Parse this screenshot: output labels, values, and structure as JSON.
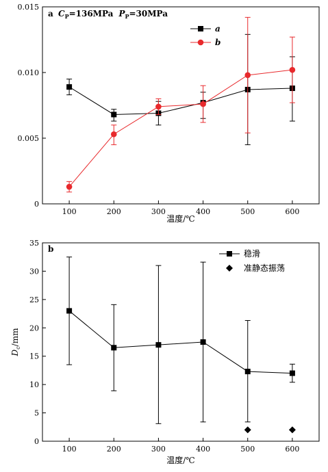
{
  "chart_data": [
    {
      "type": "line",
      "panel_label": "a",
      "condition": {
        "cp_symbol": "C",
        "cp_sub": "P",
        "cp_value": "=136MPa",
        "pp_symbol": "P",
        "pp_sub": "P",
        "pp_value": "=30MPa"
      },
      "x": [
        100,
        200,
        300,
        400,
        500,
        600
      ],
      "xlim": [
        40,
        660
      ],
      "ylim": [
        0,
        0.015
      ],
      "xticks": [
        "100",
        "200",
        "300",
        "400",
        "500",
        "600"
      ],
      "yticks": [
        {
          "value": 0,
          "label": "0"
        },
        {
          "value": 0.005,
          "label": "0.005"
        },
        {
          "value": 0.01,
          "label": "0.010"
        },
        {
          "value": 0.015,
          "label": "0.015"
        }
      ],
      "xlabel": "温度/℃",
      "ylabel": "",
      "legend_position": "top-right",
      "grid": false,
      "series": [
        {
          "name": "a",
          "color": "#000000",
          "marker": "square",
          "values": [
            0.0089,
            0.0068,
            0.0069,
            0.0077,
            0.0087,
            0.0088
          ],
          "err_low": [
            0.0083,
            0.0063,
            0.006,
            0.0065,
            0.0045,
            0.0063
          ],
          "err_high": [
            0.0095,
            0.0072,
            0.0078,
            0.0085,
            0.0129,
            0.0112
          ]
        },
        {
          "name": "b",
          "color": "#e8292c",
          "marker": "circle",
          "values": [
            0.0013,
            0.0053,
            0.0074,
            0.0076,
            0.0098,
            0.0102
          ],
          "err_low": [
            0.0009,
            0.0045,
            0.0068,
            0.0062,
            0.0054,
            0.0077
          ],
          "err_high": [
            0.0017,
            0.006,
            0.008,
            0.009,
            0.0142,
            0.0127
          ]
        }
      ]
    },
    {
      "type": "line",
      "panel_label": "b",
      "x": [
        100,
        200,
        300,
        400,
        500,
        600
      ],
      "xlim": [
        40,
        660
      ],
      "ylim": [
        0,
        35
      ],
      "xticks": [
        "100",
        "200",
        "300",
        "400",
        "500",
        "600"
      ],
      "yticks": [
        {
          "value": 0,
          "label": "0"
        },
        {
          "value": 5,
          "label": "5"
        },
        {
          "value": 10,
          "label": "10"
        },
        {
          "value": 15,
          "label": "15"
        },
        {
          "value": 20,
          "label": "20"
        },
        {
          "value": 25,
          "label": "25"
        },
        {
          "value": 30,
          "label": "30"
        },
        {
          "value": 35,
          "label": "35"
        }
      ],
      "xlabel": "温度/℃",
      "ylabel": "D",
      "ylabel_sub": "c",
      "ylabel_unit": "/mm",
      "legend_position": "top-right",
      "grid": false,
      "series": [
        {
          "name": "稳滑",
          "color": "#000000",
          "marker": "square",
          "line": true,
          "x": [
            100,
            200,
            300,
            400,
            500,
            600
          ],
          "values": [
            23,
            16.5,
            17,
            17.5,
            12.3,
            12
          ],
          "err_low": [
            13.5,
            8.9,
            3.1,
            3.4,
            3.4,
            10.4
          ],
          "err_high": [
            32.5,
            24.1,
            31,
            31.6,
            21.3,
            13.6
          ]
        },
        {
          "name": "准静态振荡",
          "color": "#000000",
          "marker": "diamond",
          "line": false,
          "x": [
            500,
            600
          ],
          "values": [
            2,
            2
          ]
        }
      ]
    }
  ]
}
